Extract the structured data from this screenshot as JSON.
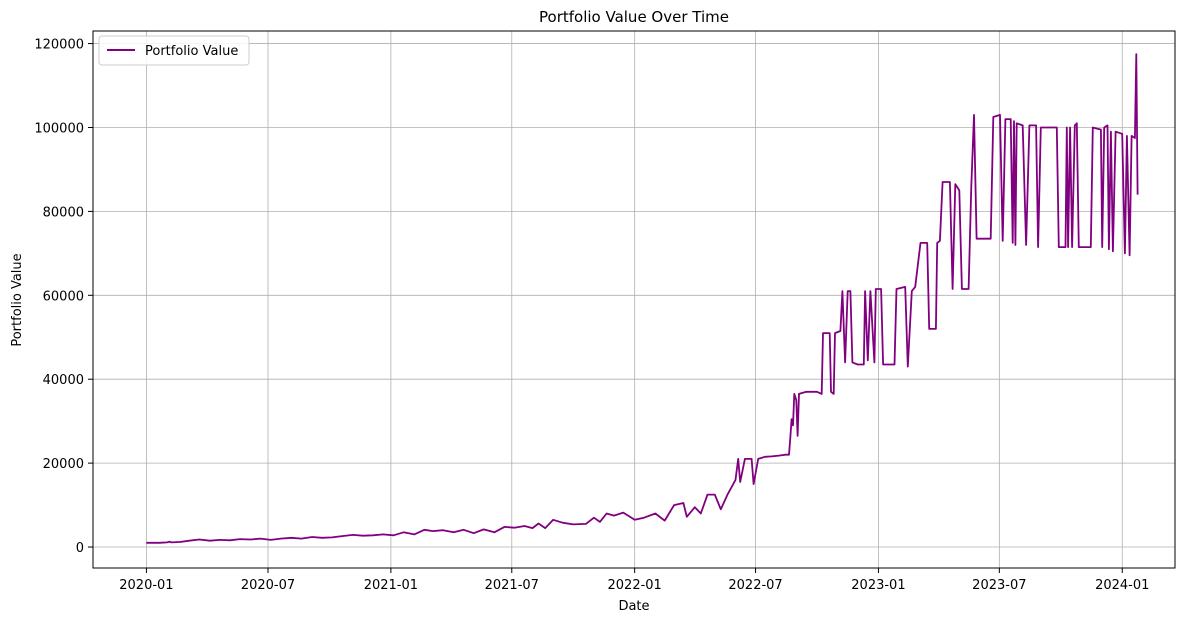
{
  "chart_data": {
    "type": "line",
    "title": "Portfolio Value Over Time",
    "xlabel": "Date",
    "ylabel": "Portfolio Value",
    "xlim": [
      "2019-10-13",
      "2024-03-20"
    ],
    "ylim": [
      -5000,
      123000
    ],
    "grid": true,
    "legend_position": "top-left",
    "x_ticks": [
      "2020-01",
      "2020-07",
      "2021-01",
      "2021-07",
      "2022-01",
      "2022-07",
      "2023-01",
      "2023-07",
      "2024-01"
    ],
    "y_ticks": [
      0,
      20000,
      40000,
      60000,
      80000,
      100000,
      120000
    ],
    "series": [
      {
        "name": "Portfolio Value",
        "color": "#800080",
        "points": [
          [
            "2020-01-01",
            1000
          ],
          [
            "2020-01-20",
            1000
          ],
          [
            "2020-02-01",
            1100
          ],
          [
            "2020-02-05",
            1300
          ],
          [
            "2020-02-07",
            1100
          ],
          [
            "2020-02-20",
            1200
          ],
          [
            "2020-03-05",
            1500
          ],
          [
            "2020-03-20",
            1800
          ],
          [
            "2020-04-05",
            1500
          ],
          [
            "2020-04-20",
            1700
          ],
          [
            "2020-05-05",
            1600
          ],
          [
            "2020-05-20",
            1900
          ],
          [
            "2020-06-05",
            1800
          ],
          [
            "2020-06-20",
            2000
          ],
          [
            "2020-07-05",
            1700
          ],
          [
            "2020-07-20",
            2000
          ],
          [
            "2020-08-05",
            2200
          ],
          [
            "2020-08-20",
            2000
          ],
          [
            "2020-09-05",
            2400
          ],
          [
            "2020-09-20",
            2200
          ],
          [
            "2020-10-05",
            2300
          ],
          [
            "2020-10-20",
            2600
          ],
          [
            "2020-11-05",
            2900
          ],
          [
            "2020-11-20",
            2700
          ],
          [
            "2020-12-05",
            2800
          ],
          [
            "2020-12-20",
            3000
          ],
          [
            "2021-01-05",
            2800
          ],
          [
            "2021-01-20",
            3500
          ],
          [
            "2021-02-05",
            3000
          ],
          [
            "2021-02-20",
            4100
          ],
          [
            "2021-03-05",
            3800
          ],
          [
            "2021-03-20",
            4000
          ],
          [
            "2021-04-05",
            3500
          ],
          [
            "2021-04-20",
            4100
          ],
          [
            "2021-05-05",
            3300
          ],
          [
            "2021-05-20",
            4200
          ],
          [
            "2021-06-05",
            3500
          ],
          [
            "2021-06-20",
            4800
          ],
          [
            "2021-07-05",
            4600
          ],
          [
            "2021-07-20",
            5000
          ],
          [
            "2021-08-01",
            4500
          ],
          [
            "2021-08-10",
            5600
          ],
          [
            "2021-08-20",
            4500
          ],
          [
            "2021-09-01",
            6500
          ],
          [
            "2021-09-15",
            5800
          ],
          [
            "2021-10-01",
            5400
          ],
          [
            "2021-10-20",
            5500
          ],
          [
            "2021-11-01",
            7000
          ],
          [
            "2021-11-10",
            6000
          ],
          [
            "2021-11-20",
            8000
          ],
          [
            "2021-12-01",
            7500
          ],
          [
            "2021-12-15",
            8200
          ],
          [
            "2022-01-01",
            6500
          ],
          [
            "2022-01-15",
            7000
          ],
          [
            "2022-02-01",
            8000
          ],
          [
            "2022-02-15",
            6300
          ],
          [
            "2022-03-01",
            10000
          ],
          [
            "2022-03-15",
            10500
          ],
          [
            "2022-03-20",
            7200
          ],
          [
            "2022-04-01",
            9500
          ],
          [
            "2022-04-10",
            8000
          ],
          [
            "2022-04-20",
            12500
          ],
          [
            "2022-05-01",
            12500
          ],
          [
            "2022-05-10",
            9000
          ],
          [
            "2022-05-20",
            12500
          ],
          [
            "2022-06-01",
            16000
          ],
          [
            "2022-06-05",
            21000
          ],
          [
            "2022-06-08",
            15500
          ],
          [
            "2022-06-15",
            21000
          ],
          [
            "2022-06-25",
            21000
          ],
          [
            "2022-06-28",
            15000
          ],
          [
            "2022-07-05",
            21000
          ],
          [
            "2022-07-15",
            21500
          ],
          [
            "2022-07-25",
            21600
          ],
          [
            "2022-08-05",
            21800
          ],
          [
            "2022-08-15",
            22000
          ],
          [
            "2022-08-20",
            22000
          ],
          [
            "2022-08-22",
            26000
          ],
          [
            "2022-08-24",
            30500
          ],
          [
            "2022-08-26",
            29000
          ],
          [
            "2022-08-28",
            36500
          ],
          [
            "2022-08-31",
            35000
          ],
          [
            "2022-09-02",
            26500
          ],
          [
            "2022-09-04",
            36500
          ],
          [
            "2022-09-15",
            37000
          ],
          [
            "2022-10-01",
            37000
          ],
          [
            "2022-10-08",
            36500
          ],
          [
            "2022-10-10",
            51000
          ],
          [
            "2022-10-20",
            51000
          ],
          [
            "2022-10-22",
            37000
          ],
          [
            "2022-10-26",
            36500
          ],
          [
            "2022-10-28",
            51000
          ],
          [
            "2022-11-05",
            51500
          ],
          [
            "2022-11-08",
            61000
          ],
          [
            "2022-11-12",
            44000
          ],
          [
            "2022-11-16",
            61000
          ],
          [
            "2022-11-20",
            61000
          ],
          [
            "2022-11-23",
            44000
          ],
          [
            "2022-12-01",
            43500
          ],
          [
            "2022-12-10",
            43500
          ],
          [
            "2022-12-12",
            61000
          ],
          [
            "2022-12-16",
            44500
          ],
          [
            "2022-12-20",
            61000
          ],
          [
            "2022-12-26",
            44000
          ],
          [
            "2022-12-28",
            61500
          ],
          [
            "2023-01-05",
            61500
          ],
          [
            "2023-01-08",
            43500
          ],
          [
            "2023-01-25",
            43500
          ],
          [
            "2023-01-28",
            61500
          ],
          [
            "2023-02-10",
            62000
          ],
          [
            "2023-02-14",
            43000
          ],
          [
            "2023-02-20",
            61000
          ],
          [
            "2023-02-25",
            62000
          ],
          [
            "2023-03-05",
            72500
          ],
          [
            "2023-03-15",
            72500
          ],
          [
            "2023-03-18",
            52000
          ],
          [
            "2023-03-28",
            52000
          ],
          [
            "2023-03-30",
            72500
          ],
          [
            "2023-04-03",
            73000
          ],
          [
            "2023-04-07",
            87000
          ],
          [
            "2023-04-18",
            87000
          ],
          [
            "2023-04-22",
            61500
          ],
          [
            "2023-04-26",
            86500
          ],
          [
            "2023-05-02",
            85000
          ],
          [
            "2023-05-06",
            61500
          ],
          [
            "2023-05-16",
            61500
          ],
          [
            "2023-05-20",
            86000
          ],
          [
            "2023-05-24",
            103000
          ],
          [
            "2023-05-28",
            73500
          ],
          [
            "2023-06-10",
            73500
          ],
          [
            "2023-06-18",
            73500
          ],
          [
            "2023-06-22",
            102500
          ],
          [
            "2023-07-02",
            103000
          ],
          [
            "2023-07-06",
            73000
          ],
          [
            "2023-07-10",
            102000
          ],
          [
            "2023-07-18",
            102000
          ],
          [
            "2023-07-21",
            72500
          ],
          [
            "2023-07-23",
            101500
          ],
          [
            "2023-07-25",
            72000
          ],
          [
            "2023-07-27",
            101000
          ],
          [
            "2023-08-05",
            100500
          ],
          [
            "2023-08-10",
            72000
          ],
          [
            "2023-08-15",
            100500
          ],
          [
            "2023-08-25",
            100500
          ],
          [
            "2023-08-28",
            71500
          ],
          [
            "2023-09-01",
            100000
          ],
          [
            "2023-09-15",
            100000
          ],
          [
            "2023-09-25",
            100000
          ],
          [
            "2023-09-28",
            71500
          ],
          [
            "2023-10-08",
            71500
          ],
          [
            "2023-10-10",
            100000
          ],
          [
            "2023-10-12",
            71500
          ],
          [
            "2023-10-15",
            100000
          ],
          [
            "2023-10-18",
            71500
          ],
          [
            "2023-10-22",
            100500
          ],
          [
            "2023-10-25",
            101000
          ],
          [
            "2023-10-28",
            71500
          ],
          [
            "2023-11-15",
            71500
          ],
          [
            "2023-11-18",
            100000
          ],
          [
            "2023-11-30",
            99500
          ],
          [
            "2023-12-02",
            71500
          ],
          [
            "2023-12-05",
            100000
          ],
          [
            "2023-12-10",
            100500
          ],
          [
            "2023-12-12",
            71000
          ],
          [
            "2023-12-15",
            99000
          ],
          [
            "2023-12-18",
            70500
          ],
          [
            "2023-12-22",
            99000
          ],
          [
            "2024-01-01",
            98500
          ],
          [
            "2024-01-05",
            70000
          ],
          [
            "2024-01-08",
            98000
          ],
          [
            "2024-01-12",
            69500
          ],
          [
            "2024-01-15",
            98000
          ],
          [
            "2024-01-20",
            97500
          ],
          [
            "2024-01-22",
            117500
          ],
          [
            "2024-01-24",
            84000
          ]
        ]
      }
    ]
  }
}
